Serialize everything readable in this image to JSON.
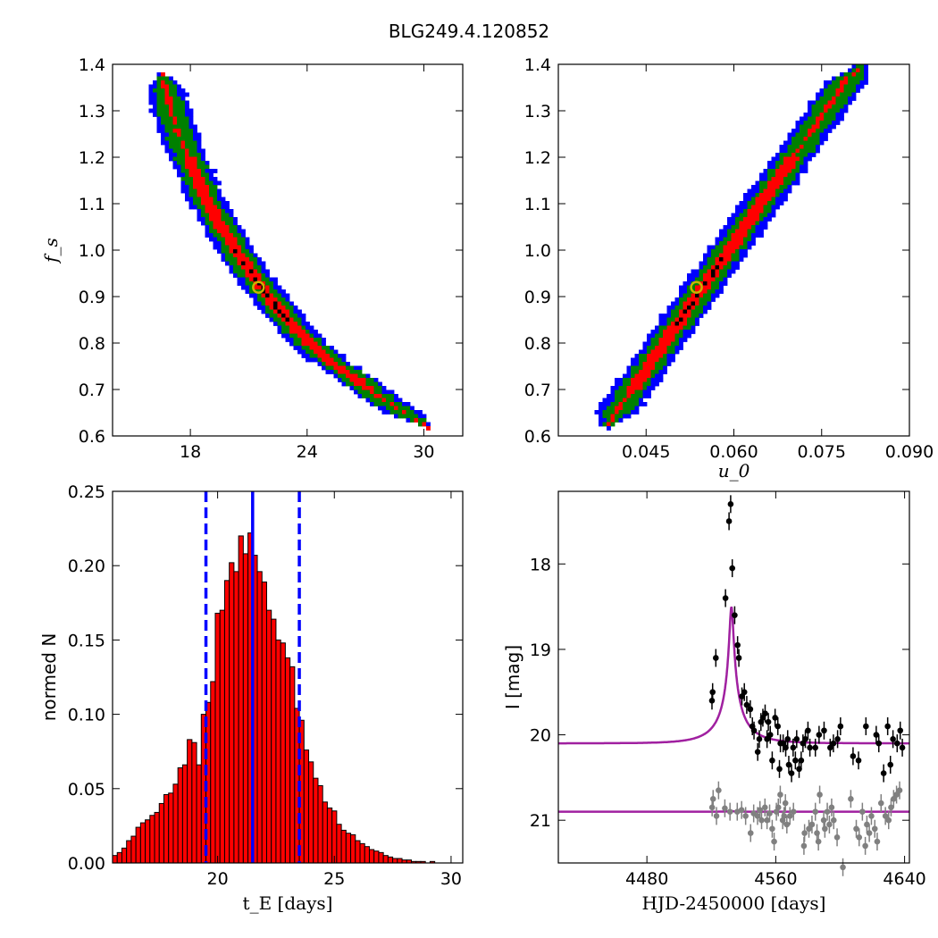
{
  "figure": {
    "title": "BLG249.4.120852"
  },
  "colors": {
    "blue": "#0000ff",
    "green": "#008000",
    "red": "#ff0000",
    "black": "#000000",
    "marker_ring": "#c8b400",
    "model": "#a020a0",
    "second_band": "#808080"
  },
  "chart_data": [
    {
      "panel": "fs_vs_tE",
      "type": "heatmap",
      "description_levels": [
        "blue",
        "green",
        "red",
        "black"
      ],
      "xlim": [
        14,
        32
      ],
      "ylim": [
        0.6,
        1.4
      ],
      "xticks": [
        18,
        24,
        30
      ],
      "yticks": [
        0.6,
        0.7,
        0.8,
        0.9,
        1.0,
        1.1,
        1.2,
        1.3,
        1.4
      ],
      "ytick_labels": [
        "0.6",
        "0.7",
        "0.8",
        "0.9",
        "1.0",
        "1.1",
        "1.2",
        "1.3",
        "1.4"
      ],
      "xlabel": "",
      "ylabel": "f_s",
      "best_fit": {
        "x": 21.5,
        "y": 0.92
      },
      "ridge": [
        [
          16.6,
          1.37
        ],
        [
          17.0,
          1.3
        ],
        [
          17.6,
          1.23
        ],
        [
          18.2,
          1.17
        ],
        [
          18.8,
          1.11
        ],
        [
          19.6,
          1.05
        ],
        [
          20.5,
          0.99
        ],
        [
          21.3,
          0.94
        ],
        [
          22.2,
          0.89
        ],
        [
          23.2,
          0.84
        ],
        [
          24.3,
          0.79
        ],
        [
          25.5,
          0.75
        ],
        [
          26.6,
          0.72
        ],
        [
          27.8,
          0.68
        ],
        [
          29.0,
          0.65
        ],
        [
          30.2,
          0.62
        ]
      ],
      "half_widths": {
        "blue": 0.055,
        "green": 0.038,
        "red": 0.018,
        "black": 0.006
      }
    },
    {
      "panel": "fs_vs_u0",
      "type": "heatmap",
      "xlim": [
        0.03,
        0.09
      ],
      "ylim": [
        0.6,
        1.4
      ],
      "xticks": [
        0.045,
        0.06,
        0.075,
        0.09
      ],
      "xtick_labels": [
        "0.045",
        "0.060",
        "0.075",
        "0.090"
      ],
      "yticks": [
        0.6,
        0.7,
        0.8,
        0.9,
        1.0,
        1.1,
        1.2,
        1.3,
        1.4
      ],
      "ytick_labels": [
        "0.6",
        "0.7",
        "0.8",
        "0.9",
        "1.0",
        "1.1",
        "1.2",
        "1.3",
        "1.4"
      ],
      "xlabel": "u_0",
      "ylabel": "",
      "best_fit": {
        "x": 0.0536,
        "y": 0.92
      },
      "ridge": [
        [
          0.0383,
          0.62
        ],
        [
          0.041,
          0.67
        ],
        [
          0.0438,
          0.72
        ],
        [
          0.0465,
          0.77
        ],
        [
          0.0492,
          0.82
        ],
        [
          0.052,
          0.87
        ],
        [
          0.0548,
          0.92
        ],
        [
          0.0575,
          0.97
        ],
        [
          0.0603,
          1.02
        ],
        [
          0.063,
          1.07
        ],
        [
          0.0658,
          1.12
        ],
        [
          0.0685,
          1.17
        ],
        [
          0.0713,
          1.22
        ],
        [
          0.074,
          1.27
        ],
        [
          0.0768,
          1.32
        ],
        [
          0.0795,
          1.37
        ],
        [
          0.0815,
          1.39
        ]
      ],
      "half_widths": {
        "blue": 0.06,
        "green": 0.04,
        "red": 0.02,
        "black": 0.006
      }
    },
    {
      "panel": "tE_histogram",
      "type": "bar",
      "xlim": [
        15.5,
        30.5
      ],
      "ylim": [
        0,
        0.25
      ],
      "xticks": [
        20,
        25,
        30
      ],
      "yticks": [
        0,
        0.05,
        0.1,
        0.15,
        0.2,
        0.25
      ],
      "ytick_labels": [
        "0.00",
        "0.05",
        "0.10",
        "0.15",
        "0.20",
        "0.25"
      ],
      "xlabel": "t_E [days]",
      "ylabel": "normed N",
      "bin_start": 15.5,
      "bin_width": 0.2,
      "values": [
        0.005,
        0.007,
        0.01,
        0.015,
        0.018,
        0.024,
        0.027,
        0.029,
        0.032,
        0.034,
        0.04,
        0.046,
        0.047,
        0.053,
        0.064,
        0.066,
        0.083,
        0.081,
        0.066,
        0.1,
        0.108,
        0.122,
        0.168,
        0.17,
        0.19,
        0.202,
        0.196,
        0.22,
        0.208,
        0.222,
        0.207,
        0.196,
        0.189,
        0.17,
        0.164,
        0.15,
        0.148,
        0.138,
        0.132,
        0.104,
        0.096,
        0.076,
        0.068,
        0.057,
        0.052,
        0.041,
        0.037,
        0.035,
        0.026,
        0.022,
        0.02,
        0.019,
        0.015,
        0.013,
        0.011,
        0.009,
        0.008,
        0.007,
        0.005,
        0.004,
        0.003,
        0.003,
        0.002,
        0.002,
        0.001,
        0.001,
        0.001,
        0.0,
        0.001,
        0.0,
        0.0,
        0.0,
        0.0,
        0.0,
        0.0
      ],
      "median": 21.5,
      "interval": [
        19.5,
        23.5
      ]
    },
    {
      "panel": "light_curve",
      "type": "scatter",
      "xlim": [
        4425,
        4643
      ],
      "ylim": [
        21.5,
        17.15
      ],
      "xticks": [
        4480,
        4560,
        4640
      ],
      "yticks": [
        18,
        19,
        20,
        21
      ],
      "xlabel": "HJD-2450000 [days]",
      "ylabel": "I [mag]",
      "model": {
        "t0": 4532.5,
        "tE": 21.5,
        "u0": 0.0536,
        "base_mag": 20.1,
        "band2_mag": 20.9
      },
      "series": [
        {
          "name": "",
          "color": "black",
          "points": [
            [
              4520.4,
              19.6
            ],
            [
              4520.8,
              19.5
            ],
            [
              4522.8,
              19.1
            ],
            [
              4528.8,
              18.4
            ],
            [
              4531,
              17.5
            ],
            [
              4532,
              17.3
            ],
            [
              4533,
              18.05
            ],
            [
              4534.5,
              18.6
            ],
            [
              4536.3,
              18.95
            ],
            [
              4537.1,
              19.1
            ],
            [
              4539,
              19.55
            ],
            [
              4540.5,
              19.5
            ],
            [
              4542,
              19.65
            ],
            [
              4544.2,
              19.7
            ],
            [
              4545.5,
              19.9
            ],
            [
              4546.5,
              19.95
            ],
            [
              4548.8,
              20.2
            ],
            [
              4549.8,
              20.05
            ],
            [
              4550.8,
              19.85
            ],
            [
              4552,
              19.8
            ],
            [
              4553.4,
              19.75
            ],
            [
              4554.6,
              20.05
            ],
            [
              4555.4,
              19.85
            ],
            [
              4556.6,
              20.0
            ],
            [
              4557.8,
              20.3
            ],
            [
              4559.6,
              19.8
            ],
            [
              4561.3,
              19.9
            ],
            [
              4562.3,
              20.4
            ],
            [
              4562.9,
              20.1
            ],
            [
              4564.6,
              20.1
            ],
            [
              4566.2,
              20.15
            ],
            [
              4567.4,
              20.05
            ],
            [
              4568.1,
              20.35
            ],
            [
              4569.8,
              20.45
            ],
            [
              4570.8,
              20.15
            ],
            [
              4572.2,
              20.3
            ],
            [
              4573,
              20.05
            ],
            [
              4574.5,
              20.4
            ],
            [
              4575.8,
              20.3
            ],
            [
              4576.9,
              20.1
            ],
            [
              4578.4,
              20.05
            ],
            [
              4580,
              19.95
            ],
            [
              4581.2,
              20.15
            ],
            [
              4584.6,
              20.15
            ],
            [
              4586.9,
              20.0
            ],
            [
              4590,
              19.95
            ],
            [
              4593.8,
              20.15
            ],
            [
              4595.8,
              20.1
            ],
            [
              4598.4,
              20.05
            ],
            [
              4600.2,
              19.9
            ],
            [
              4608,
              20.25
            ],
            [
              4611.4,
              20.3
            ],
            [
              4616,
              19.9
            ],
            [
              4622.4,
              20.0
            ],
            [
              4624,
              20.1
            ],
            [
              4627,
              20.45
            ],
            [
              4629.5,
              19.9
            ],
            [
              4631.2,
              20.35
            ],
            [
              4632.8,
              20.05
            ],
            [
              4635.4,
              20.1
            ],
            [
              4637.3,
              19.95
            ],
            [
              4638.6,
              20.15
            ]
          ]
        },
        {
          "name": "",
          "color": "gray",
          "points": [
            [
              4520.5,
              20.85
            ],
            [
              4521.1,
              20.75
            ],
            [
              4523.2,
              20.95
            ],
            [
              4524.5,
              20.65
            ],
            [
              4528.4,
              20.86
            ],
            [
              4531.6,
              20.9
            ],
            [
              4536.1,
              20.9
            ],
            [
              4538.8,
              20.88
            ],
            [
              4541.3,
              20.95
            ],
            [
              4544.4,
              21.15
            ],
            [
              4546.3,
              20.92
            ],
            [
              4548.7,
              20.95
            ],
            [
              4550.2,
              20.88
            ],
            [
              4551.2,
              21.0
            ],
            [
              4553.3,
              20.85
            ],
            [
              4554.6,
              21.0
            ],
            [
              4556.2,
              20.92
            ],
            [
              4557.8,
              21.1
            ],
            [
              4559,
              21.25
            ],
            [
              4560.4,
              20.9
            ],
            [
              4561.6,
              20.85
            ],
            [
              4562.8,
              20.7
            ],
            [
              4564.3,
              21.0
            ],
            [
              4565.2,
              20.95
            ],
            [
              4566,
              20.8
            ],
            [
              4566.9,
              21.05
            ],
            [
              4568.8,
              20.95
            ],
            [
              4571,
              20.9
            ],
            [
              4577.5,
              21.3
            ],
            [
              4577.9,
              21.15
            ],
            [
              4580.6,
              21.1
            ],
            [
              4582.5,
              21.05
            ],
            [
              4584.6,
              20.9
            ],
            [
              4585.6,
              21.15
            ],
            [
              4586.5,
              21.25
            ],
            [
              4587.3,
              20.7
            ],
            [
              4589.8,
              21.0
            ],
            [
              4590.5,
              21.1
            ],
            [
              4592,
              20.9
            ],
            [
              4593.3,
              21.05
            ],
            [
              4594.7,
              20.85
            ],
            [
              4596,
              21.0
            ],
            [
              4598.1,
              21.2
            ],
            [
              4601.7,
              21.55
            ],
            [
              4606.6,
              20.75
            ],
            [
              4610,
              21.1
            ],
            [
              4611.8,
              21.2
            ],
            [
              4613.8,
              20.9
            ],
            [
              4615.6,
              21.3
            ],
            [
              4616.6,
              21.05
            ],
            [
              4618.1,
              21.15
            ],
            [
              4619.4,
              20.95
            ],
            [
              4621.5,
              21.1
            ],
            [
              4623,
              21.25
            ],
            [
              4625.4,
              20.8
            ],
            [
              4628.1,
              20.95
            ],
            [
              4630.1,
              21.0
            ],
            [
              4631.6,
              20.85
            ],
            [
              4633.2,
              20.75
            ],
            [
              4635,
              20.7
            ],
            [
              4636.9,
              20.65
            ]
          ]
        }
      ]
    }
  ]
}
